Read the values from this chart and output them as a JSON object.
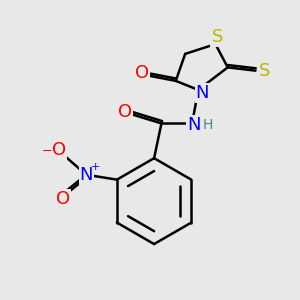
{
  "bg_color": "#e8e8e8",
  "bond_color": "#000000",
  "bond_width": 1.8,
  "atom_colors": {
    "S": "#b8b800",
    "N": "#0000ff",
    "O": "#ff0000",
    "C": "#000000",
    "H": "#448888"
  },
  "font_size_atom": 13,
  "font_size_small": 8
}
